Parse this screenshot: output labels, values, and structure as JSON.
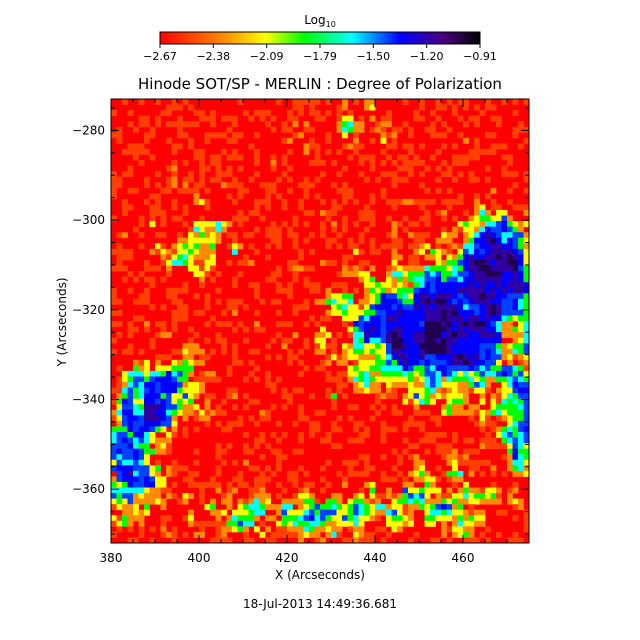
{
  "chart_data": {
    "type": "heatmap",
    "title": "Hinode SOT/SP - MERLIN : Degree of Polarization",
    "xlabel": "X (Arcseconds)",
    "ylabel": "Y (Arcseconds)",
    "xlim": [
      380,
      475
    ],
    "ylim": [
      -372,
      -273
    ],
    "x_ticks": [
      380,
      400,
      420,
      440,
      460
    ],
    "y_ticks": [
      -360,
      -340,
      -320,
      -300,
      -280
    ],
    "timestamp": "18-Jul-2013 14:49:36.681",
    "colorbar": {
      "label_base": "Log",
      "label_sub": "10",
      "range": [
        -2.67,
        -0.91
      ],
      "tick_labels": [
        "-2.67",
        "-2.38",
        "-2.09",
        "-1.79",
        "-1.50",
        "-1.20",
        "-0.91"
      ],
      "colormap": "rainbow: red-yellow-green-cyan-blue-purple-black"
    },
    "features": [
      {
        "region": "weak field background",
        "x": [
          380,
          475
        ],
        "y": [
          -372,
          -273
        ],
        "value": -2.6
      },
      {
        "region": "strong polarization patch",
        "x": [
          442,
          465
        ],
        "y": [
          -335,
          -318
        ],
        "value": -1.1
      },
      {
        "region": "strong polarization patch",
        "x": [
          385,
          395
        ],
        "y": [
          -345,
          -335
        ],
        "value": -1.1
      },
      {
        "region": "strong polarization patch",
        "x": [
          468,
          475
        ],
        "y": [
          -350,
          -340
        ],
        "value": -1.0
      }
    ]
  }
}
